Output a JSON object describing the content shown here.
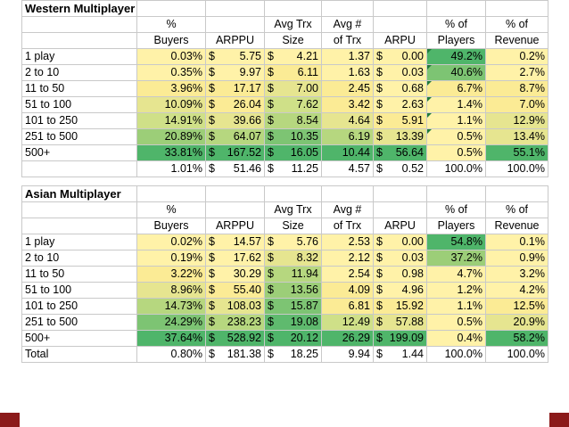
{
  "western": {
    "title": "Western Multiplayer Games",
    "headers_top": [
      "%",
      "",
      "Avg Trx",
      "Avg #",
      "",
      "% of",
      "% of"
    ],
    "headers_bottom": [
      "Buyers",
      "ARPPU",
      "Size",
      "of Trx",
      "ARPU",
      "Players",
      "Revenue"
    ],
    "rows": [
      {
        "label": "1 play",
        "buyers": "0.03%",
        "arppu": "5.75",
        "trx": "4.21",
        "num": "1.37",
        "arpu": "0.00",
        "players": "49.2%",
        "revenue": "0.2%"
      },
      {
        "label": "2 to 10",
        "buyers": "0.35%",
        "arppu": "9.97",
        "trx": "6.11",
        "num": "1.63",
        "arpu": "0.03",
        "players": "40.6%",
        "revenue": "2.7%"
      },
      {
        "label": "11 to 50",
        "buyers": "3.96%",
        "arppu": "17.17",
        "trx": "7.00",
        "num": "2.45",
        "arpu": "0.68",
        "players": "6.7%",
        "revenue": "8.7%"
      },
      {
        "label": "51 to 100",
        "buyers": "10.09%",
        "arppu": "26.04",
        "trx": "7.62",
        "num": "3.42",
        "arpu": "2.63",
        "players": "1.4%",
        "revenue": "7.0%"
      },
      {
        "label": "101 to 250",
        "buyers": "14.91%",
        "arppu": "39.66",
        "trx": "8.54",
        "num": "4.64",
        "arpu": "5.91",
        "players": "1.1%",
        "revenue": "12.9%"
      },
      {
        "label": "251 to 500",
        "buyers": "20.89%",
        "arppu": "64.07",
        "trx": "10.35",
        "num": "6.19",
        "arpu": "13.39",
        "players": "0.5%",
        "revenue": "13.4%"
      },
      {
        "label": "500+",
        "buyers": "33.81%",
        "arppu": "167.52",
        "trx": "16.05",
        "num": "10.44",
        "arpu": "56.64",
        "players": "0.5%",
        "revenue": "55.1%"
      }
    ],
    "total": {
      "label": "",
      "buyers": "1.01%",
      "arppu": "51.46",
      "trx": "11.25",
      "num": "4.57",
      "arpu": "0.52",
      "players": "100.0%",
      "revenue": "100.0%"
    }
  },
  "asian": {
    "title": "Asian Multiplayer",
    "headers_top": [
      "%",
      "",
      "Avg Trx",
      "Avg #",
      "",
      "% of",
      "% of"
    ],
    "headers_bottom": [
      "Buyers",
      "ARPPU",
      "Size",
      "of Trx",
      "ARPU",
      "Players",
      "Revenue"
    ],
    "rows": [
      {
        "label": "1 play",
        "buyers": "0.02%",
        "arppu": "14.57",
        "trx": "5.76",
        "num": "2.53",
        "arpu": "0.00",
        "players": "54.8%",
        "revenue": "0.1%"
      },
      {
        "label": "2 to 10",
        "buyers": "0.19%",
        "arppu": "17.62",
        "trx": "8.32",
        "num": "2.12",
        "arpu": "0.03",
        "players": "37.2%",
        "revenue": "0.9%"
      },
      {
        "label": "11 to 50",
        "buyers": "3.22%",
        "arppu": "30.29",
        "trx": "11.94",
        "num": "2.54",
        "arpu": "0.98",
        "players": "4.7%",
        "revenue": "3.2%"
      },
      {
        "label": "51 to 100",
        "buyers": "8.96%",
        "arppu": "55.40",
        "trx": "13.56",
        "num": "4.09",
        "arpu": "4.96",
        "players": "1.2%",
        "revenue": "4.2%"
      },
      {
        "label": "101 to 250",
        "buyers": "14.73%",
        "arppu": "108.03",
        "trx": "15.87",
        "num": "6.81",
        "arpu": "15.92",
        "players": "1.1%",
        "revenue": "12.5%"
      },
      {
        "label": "251 to 500",
        "buyers": "24.29%",
        "arppu": "238.23",
        "trx": "19.08",
        "num": "12.49",
        "arpu": "57.88",
        "players": "0.5%",
        "revenue": "20.9%"
      },
      {
        "label": "500+",
        "buyers": "37.64%",
        "arppu": "528.92",
        "trx": "20.12",
        "num": "26.29",
        "arpu": "199.09",
        "players": "0.4%",
        "revenue": "58.2%"
      }
    ],
    "total": {
      "label": "Total",
      "buyers": "0.80%",
      "arppu": "181.38",
      "trx": "18.25",
      "num": "9.94",
      "arpu": "1.44",
      "players": "100.0%",
      "revenue": "100.0%"
    }
  },
  "currency_symbol": "$",
  "colors": {
    "low": "#fff2a8",
    "high": "#4fb56a",
    "comment_marker": "#1f7a3a",
    "accent_bar": "#8b1a1a"
  }
}
